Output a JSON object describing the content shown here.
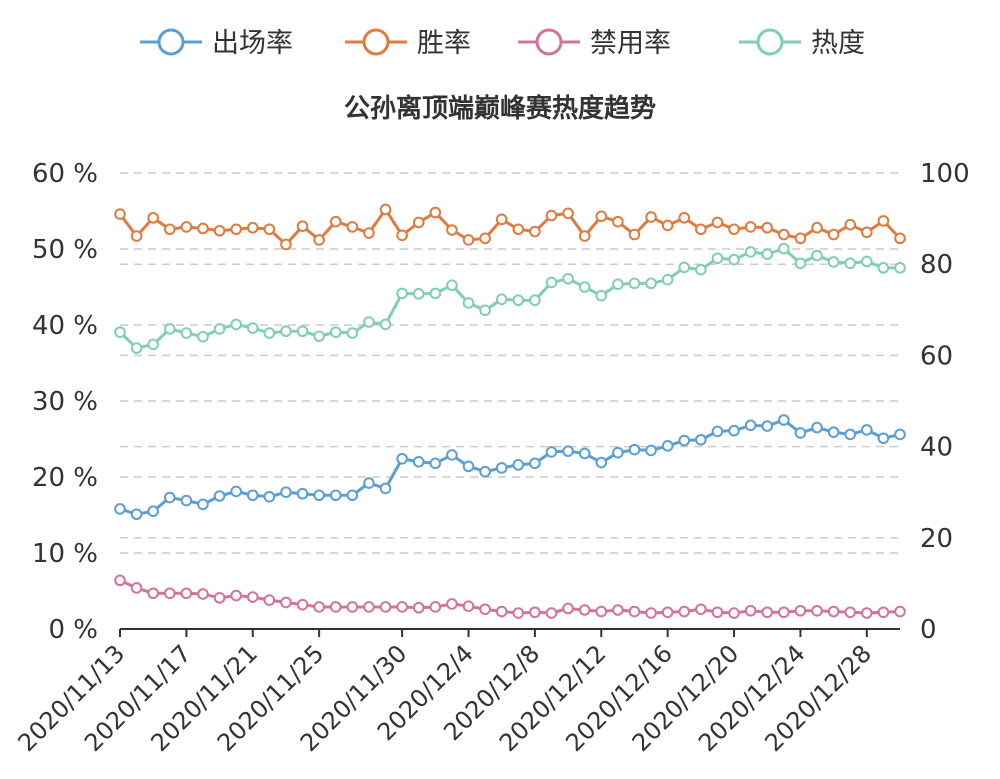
{
  "chart_data": {
    "type": "line",
    "title": "公孙离顶端巅峰赛热度趋势",
    "legend_position": "top",
    "grid": true,
    "x": [
      "2020/11/13",
      "2020/11/14",
      "2020/11/15",
      "2020/11/16",
      "2020/11/17",
      "2020/11/18",
      "2020/11/19",
      "2020/11/20",
      "2020/11/21",
      "2020/11/22",
      "2020/11/23",
      "2020/11/24",
      "2020/11/25",
      "2020/11/26",
      "2020/11/27",
      "2020/11/28",
      "2020/11/29",
      "2020/11/30",
      "2020/12/1",
      "2020/12/2",
      "2020/12/3",
      "2020/12/4",
      "2020/12/5",
      "2020/12/6",
      "2020/12/7",
      "2020/12/8",
      "2020/12/9",
      "2020/12/10",
      "2020/12/11",
      "2020/12/12",
      "2020/12/13",
      "2020/12/14",
      "2020/12/15",
      "2020/12/16",
      "2020/12/17",
      "2020/12/18",
      "2020/12/19",
      "2020/12/20",
      "2020/12/21",
      "2020/12/22",
      "2020/12/23",
      "2020/12/24",
      "2020/12/25",
      "2020/12/26",
      "2020/12/27",
      "2020/12/28",
      "2020/12/29",
      "2020/12/30"
    ],
    "x_tick_labels": [
      "2020/11/13",
      "2020/11/17",
      "2020/11/21",
      "2020/11/25",
      "2020/11/30",
      "2020/12/4",
      "2020/12/8",
      "2020/12/12",
      "2020/12/16",
      "2020/12/20",
      "2020/12/24",
      "2020/12/28"
    ],
    "y_left": {
      "ticks": [
        "0 %",
        "10 %",
        "20 %",
        "30 %",
        "40 %",
        "50 %",
        "60 %"
      ],
      "range": [
        0,
        60
      ]
    },
    "y_right": {
      "ticks": [
        "0",
        "20",
        "40",
        "60",
        "80",
        "100"
      ],
      "range": [
        0,
        100
      ]
    },
    "series": [
      {
        "name": "出场率",
        "axis": "left",
        "color": "#5a9fd4",
        "values": [
          15.8,
          15.1,
          15.5,
          17.3,
          16.9,
          16.4,
          17.5,
          18.1,
          17.6,
          17.4,
          18.0,
          17.8,
          17.6,
          17.6,
          17.6,
          19.2,
          18.5,
          22.4,
          22.0,
          21.8,
          22.9,
          21.4,
          20.7,
          21.2,
          21.6,
          21.8,
          23.3,
          23.4,
          23.1,
          21.9,
          23.2,
          23.6,
          23.5,
          24.1,
          24.8,
          24.9,
          26.0,
          26.1,
          26.8,
          26.7,
          27.5,
          25.8,
          26.5,
          25.9,
          25.6,
          26.2,
          25.1,
          25.6
        ]
      },
      {
        "name": "胜率",
        "axis": "left",
        "color": "#e07a3f",
        "values": [
          54.6,
          51.7,
          54.1,
          52.6,
          52.9,
          52.7,
          52.4,
          52.6,
          52.8,
          52.6,
          50.6,
          53.0,
          51.2,
          53.6,
          52.9,
          52.1,
          55.2,
          51.8,
          53.5,
          54.8,
          52.5,
          51.2,
          51.4,
          53.9,
          52.6,
          52.3,
          54.4,
          54.7,
          51.7,
          54.3,
          53.6,
          51.9,
          54.2,
          53.1,
          54.1,
          52.6,
          53.5,
          52.6,
          52.9,
          52.8,
          51.9,
          51.4,
          52.8,
          51.9,
          53.2,
          52.2,
          53.7,
          51.4
        ]
      },
      {
        "name": "禁用率",
        "axis": "left",
        "color": "#d4739a",
        "values": [
          6.4,
          5.4,
          4.7,
          4.7,
          4.7,
          4.6,
          4.1,
          4.4,
          4.2,
          3.8,
          3.5,
          3.2,
          2.9,
          2.9,
          2.9,
          2.9,
          2.9,
          2.9,
          2.8,
          2.9,
          3.3,
          3.0,
          2.6,
          2.3,
          2.1,
          2.2,
          2.1,
          2.7,
          2.5,
          2.3,
          2.5,
          2.3,
          2.1,
          2.2,
          2.3,
          2.6,
          2.2,
          2.1,
          2.4,
          2.2,
          2.2,
          2.4,
          2.4,
          2.3,
          2.2,
          2.1,
          2.2,
          2.3
        ]
      },
      {
        "name": "热度",
        "axis": "right",
        "color": "#7fcfb0",
        "values": [
          65.1,
          61.6,
          62.4,
          65.8,
          64.9,
          64.1,
          65.8,
          66.8,
          66.0,
          64.9,
          65.3,
          65.3,
          64.2,
          65.1,
          64.9,
          67.3,
          66.8,
          73.6,
          73.5,
          73.6,
          75.4,
          71.5,
          69.9,
          72.3,
          72.1,
          72.1,
          76.0,
          76.8,
          75.0,
          73.1,
          75.6,
          75.8,
          75.8,
          76.6,
          79.3,
          78.8,
          81.3,
          81.0,
          82.7,
          82.2,
          83.4,
          80.2,
          81.9,
          80.5,
          80.2,
          80.6,
          79.2,
          79.2
        ]
      }
    ]
  }
}
